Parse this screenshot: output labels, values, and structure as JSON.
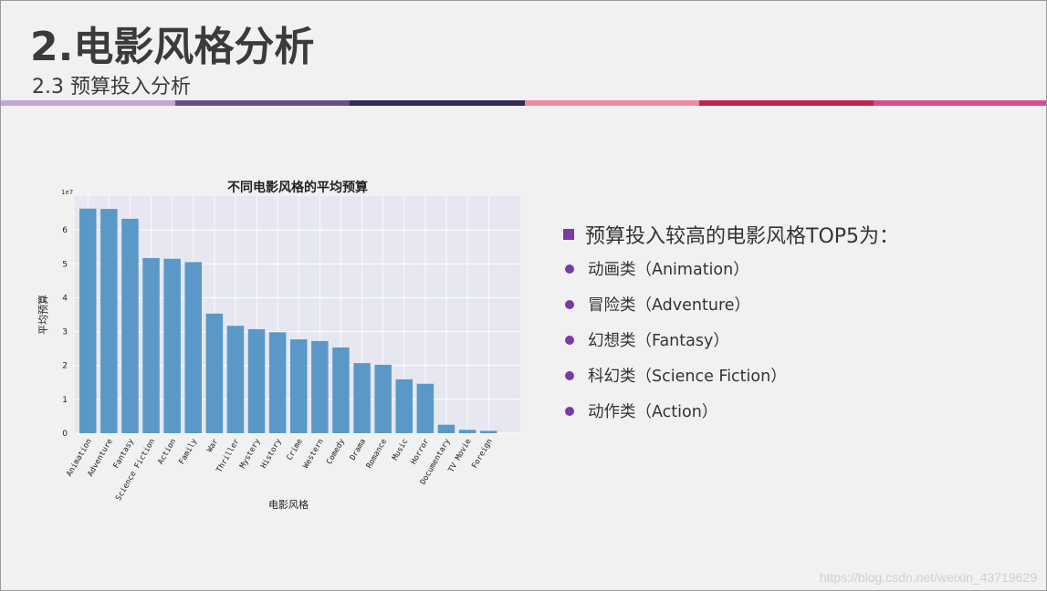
{
  "slide": {
    "title": "2.电影风格分析",
    "subtitle": "2.3 预算投入分析",
    "stripe_colors": [
      "#c3a6d6",
      "#6c4a8e",
      "#2f2d57",
      "#f08a9a",
      "#c3244f",
      "#d84c93"
    ]
  },
  "chart_data": {
    "type": "bar",
    "title": "不同电影风格的平均预算",
    "xlabel": "电影风格",
    "ylabel": "平均预算",
    "scale_label": "1e7",
    "categories": [
      "Animation",
      "Adventure",
      "Fantasy",
      "Science Fiction",
      "Action",
      "Family",
      "War",
      "Thriller",
      "Mystery",
      "History",
      "Crime",
      "Western",
      "Comedy",
      "Drama",
      "Romance",
      "Music",
      "Horror",
      "Documentary",
      "TV Movie",
      "Foreign"
    ],
    "values": [
      6.63,
      6.62,
      6.33,
      5.17,
      5.15,
      5.05,
      3.53,
      3.17,
      3.07,
      2.98,
      2.77,
      2.72,
      2.53,
      2.07,
      2.02,
      1.59,
      1.46,
      0.25,
      0.1,
      0.07
    ],
    "yticks": [
      0,
      1,
      2,
      3,
      4,
      5,
      6
    ],
    "ylim": [
      0,
      7
    ],
    "grid": true,
    "bar_color": "#5a98c8",
    "plot_bg": "#e6e7f0"
  },
  "summary": {
    "heading": "预算投入较高的电影风格TOP5为：",
    "items": [
      "动画类（Animation）",
      "冒险类（Adventure）",
      "幻想类（Fantasy）",
      "科幻类（Science Fiction）",
      "动作类（Action）"
    ],
    "bullet_color": "#7a3aa4"
  },
  "watermark": "https://blog.csdn.net/weixin_43719629"
}
